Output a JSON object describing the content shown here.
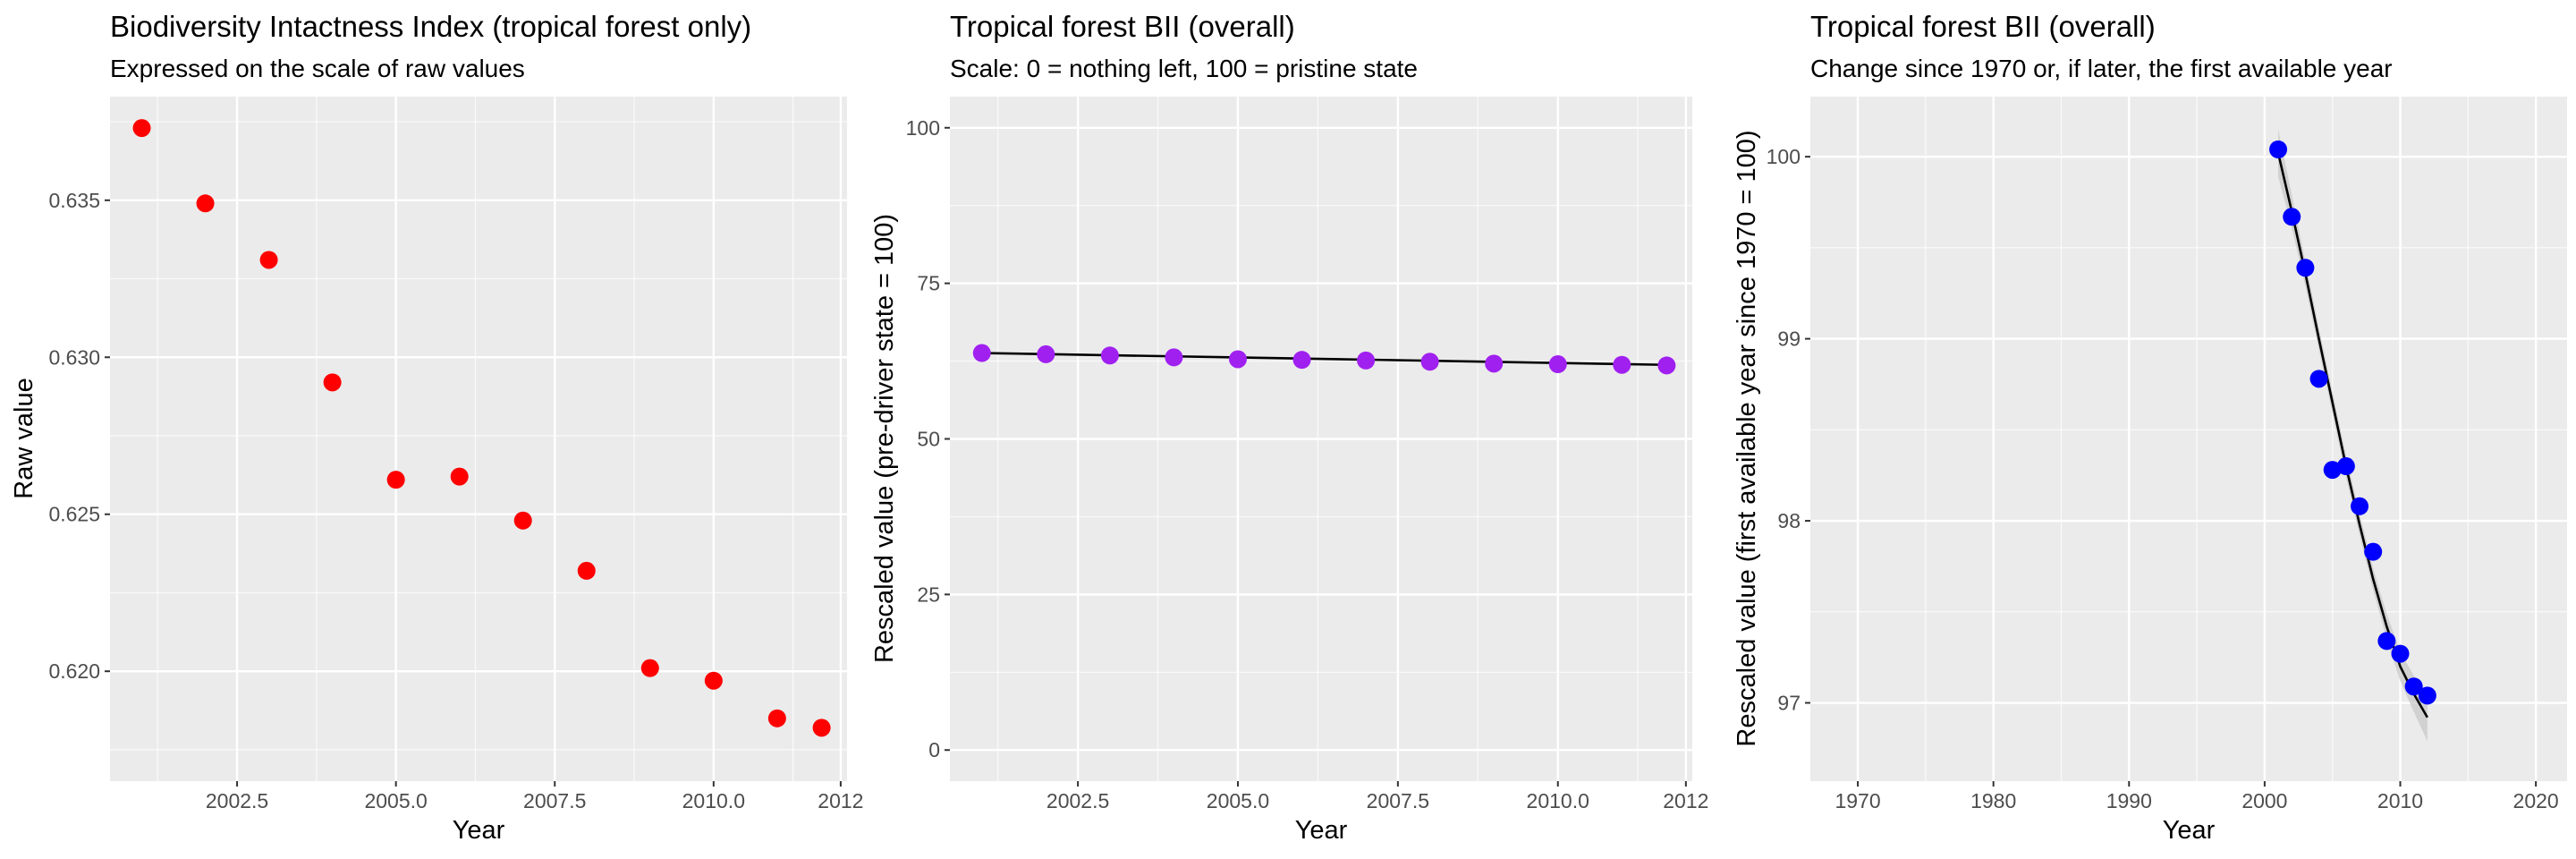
{
  "colors": {
    "panel_bg": "#ebebeb",
    "grid_major": "#ffffff",
    "panel1_points": "#ff0000",
    "panel2_points": "#a020f0",
    "panel3_points": "#0000ff",
    "fit_line": "#000000",
    "ribbon": "#c8c8c8"
  },
  "chart_data": [
    {
      "type": "scatter",
      "title": "Biodiversity Intactness Index (tropical forest only)",
      "subtitle": "Expressed on the scale of raw values",
      "xlabel": "Year",
      "ylabel": "Raw value",
      "xlim": [
        2000.5,
        2012.1
      ],
      "ylim": [
        0.6165,
        0.6383
      ],
      "xticks": [
        2002.5,
        2005.0,
        2007.5,
        2010.0,
        2012
      ],
      "xtick_labels": [
        "2002.5",
        "2005.0",
        "2007.5",
        "2010.0",
        "2012"
      ],
      "yticks": [
        0.62,
        0.625,
        0.63,
        0.635
      ],
      "ytick_labels": [
        "0.620",
        "0.625",
        "0.630",
        "0.635"
      ],
      "grid": true,
      "series": [
        {
          "x": [
            2001,
            2002,
            2003,
            2004,
            2005,
            2006,
            2007,
            2008,
            2009,
            2010,
            2011,
            2011.7
          ],
          "y": [
            0.6373,
            0.6349,
            0.6331,
            0.6292,
            0.6261,
            0.6262,
            0.6248,
            0.6232,
            0.6201,
            0.6197,
            0.6185,
            0.6182
          ]
        }
      ]
    },
    {
      "type": "scatter",
      "title": "Tropical forest BII (overall)",
      "subtitle": "Scale: 0 = nothing left, 100 = pristine state",
      "xlabel": "Year",
      "ylabel": "Rescaled value (pre-driver state = 100)",
      "xlim": [
        2000.5,
        2012.1
      ],
      "ylim": [
        -5,
        105
      ],
      "xticks": [
        2002.5,
        2005.0,
        2007.5,
        2010.0,
        2012
      ],
      "xtick_labels": [
        "2002.5",
        "2005.0",
        "2007.5",
        "2010.0",
        "2012"
      ],
      "yticks": [
        0,
        25,
        50,
        75,
        100
      ],
      "ytick_labels": [
        "0",
        "25",
        "50",
        "75",
        "100"
      ],
      "grid": true,
      "trend_line": {
        "x": [
          2001,
          2011.7
        ],
        "y": [
          63.8,
          61.9
        ]
      },
      "series": [
        {
          "x": [
            2001,
            2002,
            2003,
            2004,
            2005,
            2006,
            2007,
            2008,
            2009,
            2010,
            2011,
            2011.7
          ],
          "y": [
            63.8,
            63.6,
            63.4,
            63.1,
            62.8,
            62.7,
            62.6,
            62.4,
            62.1,
            62.0,
            61.9,
            61.8
          ]
        }
      ]
    },
    {
      "type": "scatter",
      "title": "Tropical forest BII (overall)",
      "subtitle": "Change since 1970 or, if later, the first available year",
      "xlabel": "Year",
      "ylabel": "Rescaled value (first available year since 1970 = 100)",
      "xlim": [
        1966.5,
        2022.3
      ],
      "ylim": [
        96.57,
        100.33
      ],
      "xticks": [
        1970,
        1980,
        1990,
        2000,
        2010,
        2020
      ],
      "xtick_labels": [
        "1970",
        "1980",
        "1990",
        "2000",
        "2010",
        "2020"
      ],
      "yticks": [
        97,
        98,
        99,
        100
      ],
      "ytick_labels": [
        "97",
        "98",
        "99",
        "100"
      ],
      "grid": true,
      "smooth_line": {
        "x": [
          2001,
          2002,
          2003,
          2004,
          2005,
          2006,
          2007,
          2008,
          2009,
          2010,
          2011,
          2012
        ],
        "y": [
          100.02,
          99.7,
          99.36,
          99.0,
          98.65,
          98.3,
          97.98,
          97.68,
          97.42,
          97.2,
          97.05,
          96.92
        ],
        "ribbon_half_width": [
          0.13,
          0.09,
          0.07,
          0.06,
          0.06,
          0.06,
          0.06,
          0.06,
          0.07,
          0.08,
          0.1,
          0.13
        ]
      },
      "series": [
        {
          "x": [
            2001,
            2002,
            2003,
            2004,
            2005,
            2006,
            2007,
            2008,
            2009,
            2010,
            2011,
            2012
          ],
          "y": [
            100.04,
            99.67,
            99.39,
            98.78,
            98.28,
            98.3,
            98.08,
            97.83,
            97.34,
            97.27,
            97.09,
            97.04
          ]
        }
      ]
    }
  ]
}
